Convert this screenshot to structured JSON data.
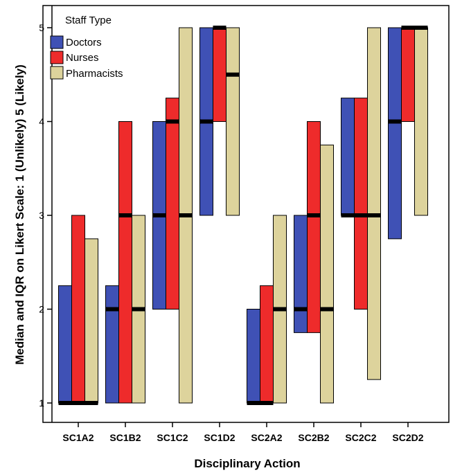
{
  "chart_data": {
    "type": "box",
    "xlabel": "Disciplinary Action",
    "ylabel": "Median and IQR on Likert Scale: 1 (Unlikely) 5 (Likely)",
    "ylim": [
      1,
      5
    ],
    "yticks": [
      1,
      2,
      3,
      4,
      5
    ],
    "categories": [
      "SC1A2",
      "SC1B2",
      "SC1C2",
      "SC1D2",
      "SC2A2",
      "SC2B2",
      "SC2C2",
      "SC2D2"
    ],
    "legend": {
      "title": "Staff Type",
      "placement": "top-left"
    },
    "series": [
      {
        "name": "Doctors",
        "color": "#3f51b5",
        "q1": [
          1,
          1,
          2,
          3,
          1,
          1.75,
          3,
          2.75
        ],
        "median": [
          1,
          2,
          3,
          4,
          1,
          2,
          3,
          4
        ],
        "q3": [
          2.25,
          2.25,
          4,
          5,
          2,
          3,
          4.25,
          5
        ]
      },
      {
        "name": "Nurses",
        "color": "#ee2b2b",
        "q1": [
          1,
          1,
          2,
          4,
          1,
          1.75,
          2,
          4
        ],
        "median": [
          1,
          3,
          4,
          5,
          1,
          3,
          3,
          5
        ],
        "q3": [
          3,
          4,
          4.25,
          5,
          2.25,
          4,
          4.25,
          5
        ]
      },
      {
        "name": "Pharmacists",
        "color": "#ddd39c",
        "q1": [
          1,
          1,
          1,
          3,
          1,
          1,
          1.25,
          3
        ],
        "median": [
          1,
          2,
          3,
          4.5,
          2,
          2,
          3,
          5
        ],
        "q3": [
          2.75,
          3,
          5,
          5,
          3,
          3.75,
          5,
          5
        ]
      }
    ]
  }
}
